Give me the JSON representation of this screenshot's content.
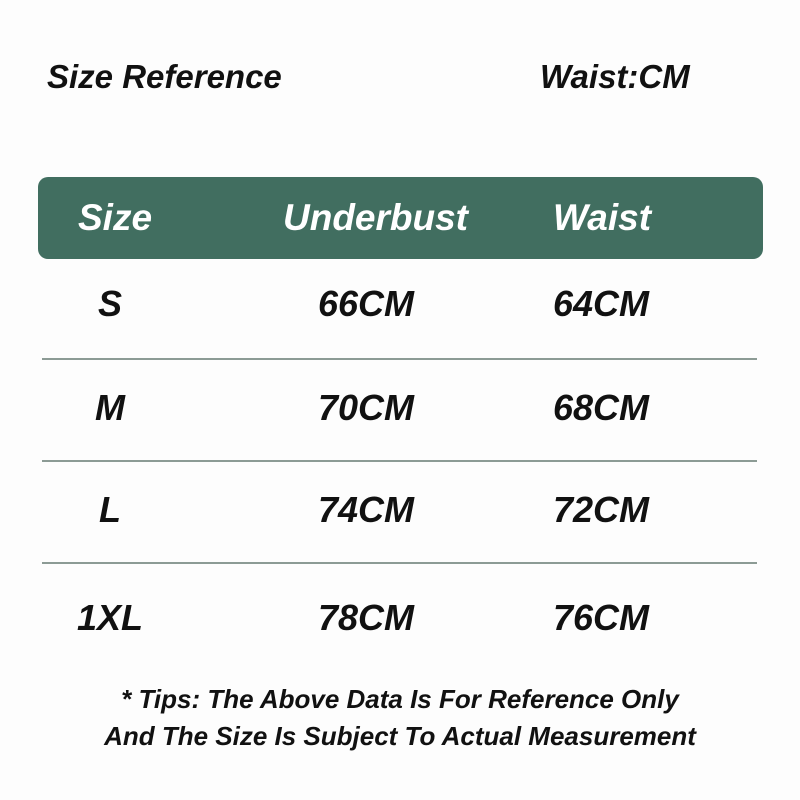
{
  "title": "Size Reference",
  "unit_label": "Waist:CM",
  "colors": {
    "header_bg": "#416e60",
    "divider": "#8c9b95"
  },
  "table": {
    "headers": [
      "Size",
      "Underbust",
      "Waist"
    ],
    "rows": [
      [
        "S",
        "66CM",
        "64CM"
      ],
      [
        "M",
        "70CM",
        "68CM"
      ],
      [
        "L",
        "74CM",
        "72CM"
      ],
      [
        "1XL",
        "78CM",
        "76CM"
      ]
    ]
  },
  "tips": [
    "* Tips: The Above Data Is For Reference Only",
    "And The Size Is Subject To Actual Measurement"
  ]
}
